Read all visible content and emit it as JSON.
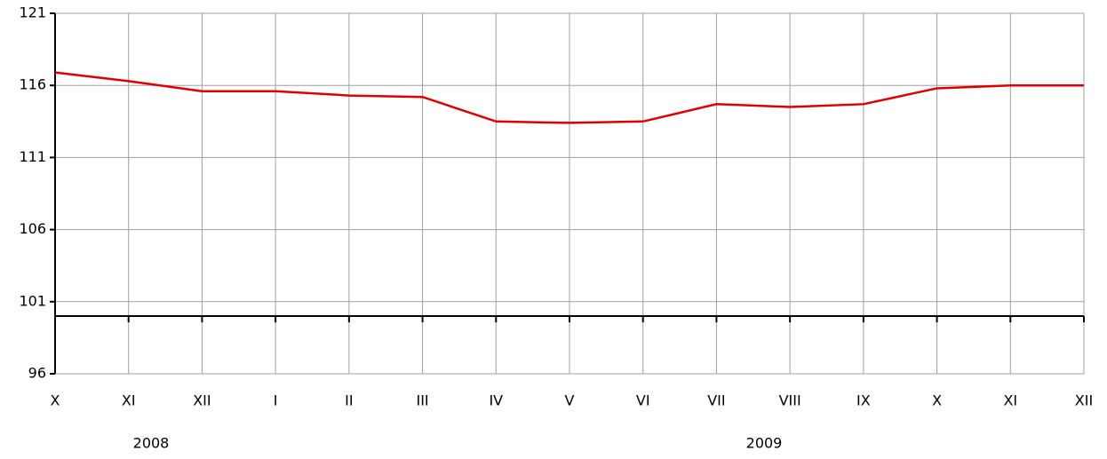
{
  "chart_data": {
    "type": "line",
    "categories": [
      "X",
      "XI",
      "XII",
      "I",
      "II",
      "III",
      "IV",
      "V",
      "VI",
      "VII",
      "VIII",
      "IX",
      "X",
      "XI",
      "XII"
    ],
    "years": [
      "2008",
      "2009"
    ],
    "series": [
      {
        "color": "#e00000",
        "values": [
          116.9,
          116.3,
          115.6,
          115.6,
          115.3,
          115.2,
          113.5,
          113.4,
          113.5,
          114.7,
          114.5,
          114.7,
          115.8,
          116.0,
          116.0
        ]
      }
    ],
    "ylim": [
      96,
      121
    ],
    "yticks": [
      96,
      101,
      106,
      111,
      116,
      121
    ],
    "baseline": 100,
    "grid": true
  }
}
